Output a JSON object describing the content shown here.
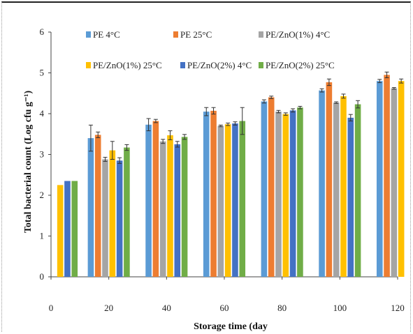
{
  "chart_data": {
    "type": "bar",
    "title": "",
    "xlabel": "Storage time (day",
    "ylabel": "Total bacterial count (Log cfu g⁻¹)",
    "ylim": [
      0,
      6
    ],
    "xlim": [
      0,
      120
    ],
    "x_ticks": [
      "0",
      "20",
      "40",
      "60",
      "80",
      "100",
      "120"
    ],
    "y_ticks": [
      "0",
      "1",
      "2",
      "3",
      "4",
      "5",
      "6"
    ],
    "grid": false,
    "legend_position": "top",
    "categories": [
      0,
      20,
      40,
      60,
      80,
      100,
      120
    ],
    "series": [
      {
        "name": "PE 4°C",
        "color": "#5b9bd5",
        "values": [
          null,
          3.4,
          3.73,
          4.05,
          4.3,
          4.57,
          4.8
        ],
        "errors": [
          0,
          0.32,
          0.15,
          0.1,
          0.04,
          0.04,
          0.04
        ]
      },
      {
        "name": "PE 25°C",
        "color": "#ed7d31",
        "values": [
          null,
          3.48,
          3.82,
          4.07,
          4.4,
          4.77,
          4.95
        ],
        "errors": [
          0,
          0.07,
          0.04,
          0.08,
          0.03,
          0.08,
          0.07
        ]
      },
      {
        "name": "PE/ZnO(1%) 4°C",
        "color": "#a5a5a5",
        "values": [
          null,
          2.88,
          3.32,
          3.7,
          4.05,
          4.27,
          4.62
        ],
        "errors": [
          0,
          0.05,
          0.05,
          0.02,
          0.03,
          0.02,
          0.02
        ]
      },
      {
        "name": "PE/ZnO(1%) 25°C",
        "color": "#ffc000",
        "values": [
          2.25,
          3.1,
          3.47,
          3.74,
          3.99,
          4.43,
          4.8
        ],
        "errors": [
          0,
          0.22,
          0.11,
          0.03,
          0.03,
          0.05,
          0.05
        ]
      },
      {
        "name": "PE/ZnO(2%) 4°C",
        "color": "#4472c4",
        "values": [
          2.35,
          2.85,
          3.25,
          3.76,
          4.08,
          3.9,
          null
        ],
        "errors": [
          0,
          0.07,
          0.07,
          0.04,
          0.04,
          0.08,
          0
        ]
      },
      {
        "name": "PE/ZnO(2%) 25°C",
        "color": "#70ad47",
        "values": [
          2.35,
          3.17,
          3.43,
          3.82,
          4.15,
          4.23,
          null
        ],
        "errors": [
          0,
          0.07,
          0.06,
          0.33,
          0.03,
          0.09,
          0
        ]
      }
    ]
  }
}
